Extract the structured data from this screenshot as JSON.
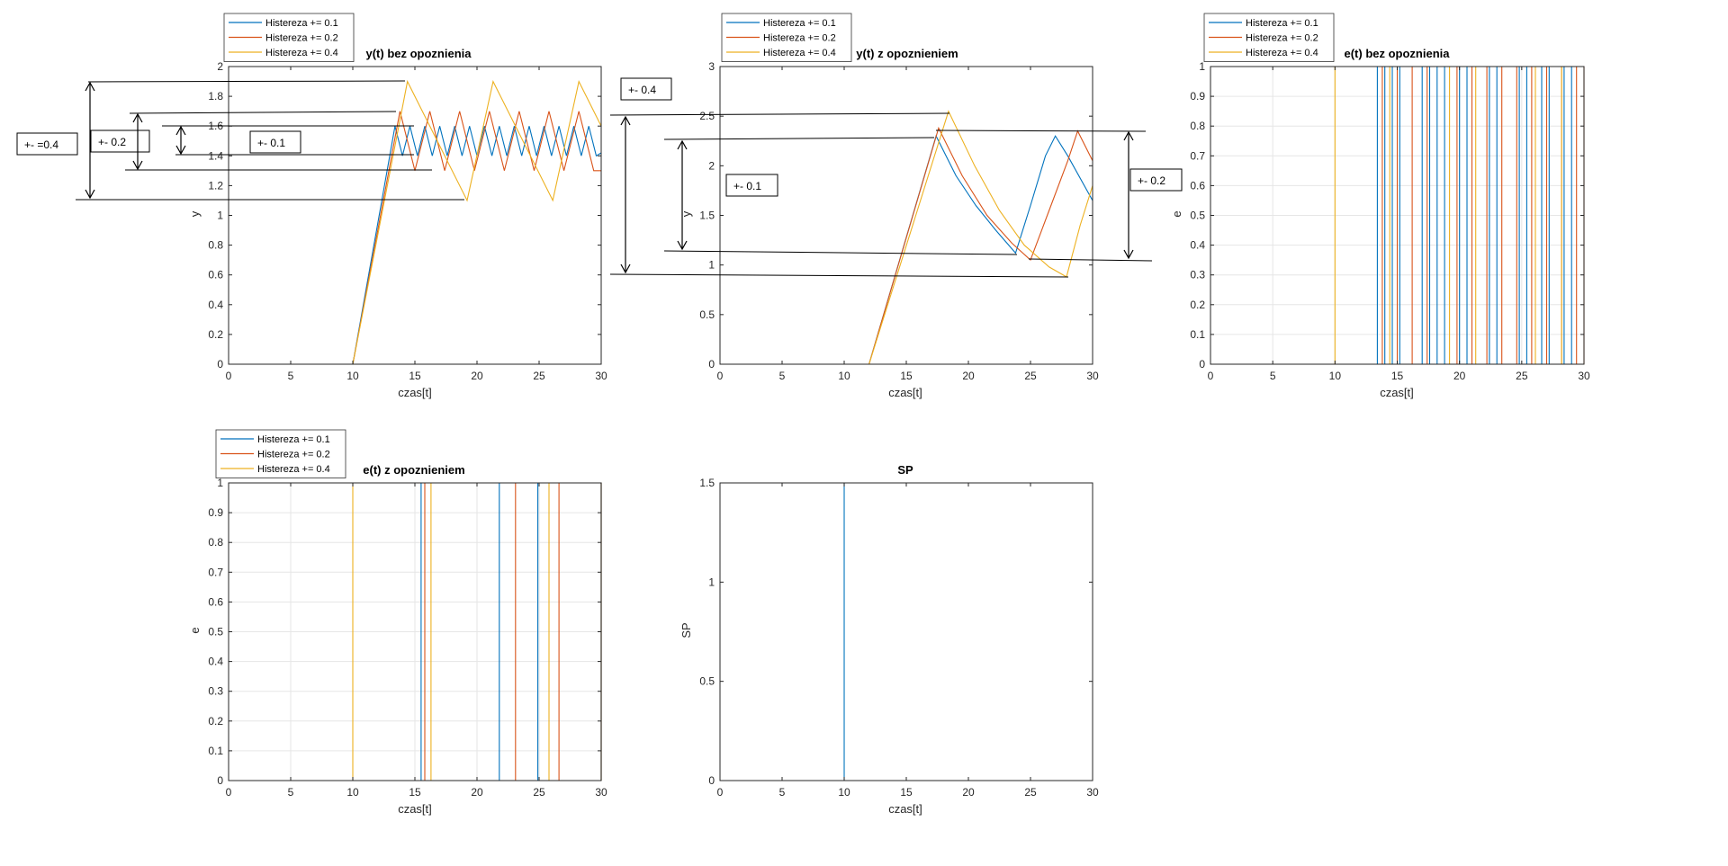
{
  "colors": {
    "series": [
      "#0072BD",
      "#D95319",
      "#EDB120"
    ],
    "grid": "#E6E6E6",
    "axis": "#262626",
    "annotation": "#000000"
  },
  "chart_data": [
    {
      "id": "p1",
      "type": "line",
      "title": "y(t) bez opoznienia",
      "xlabel": "czas[t]",
      "ylabel": "y",
      "xlim": [
        0,
        30
      ],
      "ylim": [
        0,
        2
      ],
      "xticks": [
        "0",
        "5",
        "10",
        "15",
        "20",
        "25",
        "30"
      ],
      "yticks": [
        "0",
        "0.2",
        "0.4",
        "0.6",
        "0.8",
        "1",
        "1.2",
        "1.4",
        "1.6",
        "1.8",
        "2"
      ],
      "grid": false,
      "legend": [
        "Histereza += 0.1",
        "Histereza += 0.2",
        "Histereza += 0.4"
      ],
      "series": [
        {
          "name": "Histereza += 0.1",
          "x": [
            0,
            10,
            13.4,
            14.0,
            14.6,
            15.2,
            15.8,
            16.4,
            17.0,
            17.6,
            18.2,
            18.8,
            19.4,
            20.0,
            20.6,
            21.2,
            21.8,
            22.4,
            23.0,
            23.6,
            24.2,
            24.8,
            25.4,
            26.0,
            26.6,
            27.2,
            27.8,
            28.4,
            29.0,
            29.6,
            30
          ],
          "y": [
            0,
            0,
            1.6,
            1.4,
            1.6,
            1.4,
            1.6,
            1.4,
            1.6,
            1.4,
            1.6,
            1.4,
            1.6,
            1.4,
            1.6,
            1.4,
            1.6,
            1.4,
            1.6,
            1.4,
            1.6,
            1.4,
            1.6,
            1.4,
            1.6,
            1.4,
            1.6,
            1.4,
            1.6,
            1.4,
            1.42
          ]
        },
        {
          "name": "Histereza += 0.2",
          "x": [
            0,
            10,
            13.8,
            15.0,
            16.2,
            17.4,
            18.6,
            19.8,
            21.0,
            22.2,
            23.4,
            24.6,
            25.8,
            27.0,
            28.2,
            29.4,
            30
          ],
          "y": [
            0,
            0,
            1.7,
            1.3,
            1.7,
            1.3,
            1.7,
            1.3,
            1.7,
            1.3,
            1.7,
            1.3,
            1.7,
            1.3,
            1.7,
            1.3,
            1.3
          ]
        },
        {
          "name": "Histereza += 0.4",
          "x": [
            0,
            10,
            14.4,
            19.2,
            21.3,
            26.1,
            28.2,
            30
          ],
          "y": [
            0,
            0,
            1.9,
            1.1,
            1.9,
            1.1,
            1.9,
            1.6
          ]
        }
      ],
      "annotations": [
        "+- =0.4",
        "+- 0.2",
        "+- 0.1"
      ]
    },
    {
      "id": "p2",
      "type": "line",
      "title": "y(t) z opoznieniem",
      "xlabel": "czas[t]",
      "ylabel": "y",
      "xlim": [
        0,
        30
      ],
      "ylim": [
        0,
        3
      ],
      "xticks": [
        "0",
        "5",
        "10",
        "15",
        "20",
        "25",
        "30"
      ],
      "yticks": [
        "0",
        "0.5",
        "1",
        "1.5",
        "2",
        "2.5",
        "3"
      ],
      "grid": false,
      "legend": [
        "Histereza += 0.1",
        "Histereza += 0.2",
        "Histereza += 0.4"
      ],
      "series": [
        {
          "name": "Histereza += 0.1",
          "x": [
            0,
            12,
            17.4,
            19.0,
            20.6,
            22.2,
            23.8,
            25.0,
            26.2,
            27.0,
            28.0,
            30
          ],
          "y": [
            0,
            0,
            2.3,
            1.9,
            1.6,
            1.35,
            1.12,
            1.6,
            2.1,
            2.3,
            2.1,
            1.65
          ]
        },
        {
          "name": "Histereza += 0.2",
          "x": [
            0,
            12,
            17.6,
            19.5,
            21.5,
            23.5,
            25.0,
            26.5,
            28.0,
            28.8,
            30
          ],
          "y": [
            0,
            0,
            2.38,
            1.9,
            1.5,
            1.22,
            1.05,
            1.55,
            2.05,
            2.35,
            2.05
          ]
        },
        {
          "name": "Histereza += 0.4",
          "x": [
            0,
            12,
            18.4,
            20.5,
            22.5,
            24.5,
            26.5,
            27.9,
            29.0,
            30
          ],
          "y": [
            0,
            0,
            2.55,
            2.0,
            1.55,
            1.2,
            0.98,
            0.88,
            1.4,
            1.8
          ]
        }
      ],
      "annotations": [
        "+- 0.4",
        "+- 0.1",
        "+- 0.2"
      ]
    },
    {
      "id": "p3",
      "type": "line",
      "title": "e(t) bez opoznienia",
      "xlabel": "czas[t]",
      "ylabel": "e",
      "xlim": [
        0,
        30
      ],
      "ylim": [
        0,
        1
      ],
      "xticks": [
        "0",
        "5",
        "10",
        "15",
        "20",
        "25",
        "30"
      ],
      "yticks": [
        "0",
        "0.1",
        "0.2",
        "0.3",
        "0.4",
        "0.5",
        "0.6",
        "0.7",
        "0.8",
        "0.9",
        "1"
      ],
      "grid": true,
      "legend": [
        "Histereza += 0.1",
        "Histereza += 0.2",
        "Histereza += 0.4"
      ],
      "series": [
        {
          "name": "Histereza += 0.1",
          "switch_times": [
            13.4,
            14.0,
            14.6,
            15.2,
            17.0,
            17.6,
            18.2,
            18.8,
            20.0,
            20.6,
            22.4,
            23.0,
            24.8,
            25.4,
            26.6,
            27.2,
            28.4,
            29.0
          ]
        },
        {
          "name": "Histereza += 0.2",
          "switch_times": [
            13.8,
            15.0,
            16.2,
            17.4,
            19.8,
            21.0,
            22.2,
            23.4,
            24.6,
            25.8,
            27.0,
            28.2,
            29.4,
            30
          ]
        },
        {
          "name": "Histereza += 0.4",
          "switch_times": [
            10,
            14.4,
            19.2,
            21.3,
            26.1,
            28.2
          ]
        }
      ]
    },
    {
      "id": "p4",
      "type": "line",
      "title": "e(t) z opoznieniem",
      "xlabel": "czas[t]",
      "ylabel": "e",
      "xlim": [
        0,
        30
      ],
      "ylim": [
        0,
        1
      ],
      "xticks": [
        "0",
        "5",
        "10",
        "15",
        "20",
        "25",
        "30"
      ],
      "yticks": [
        "0",
        "0.1",
        "0.2",
        "0.3",
        "0.4",
        "0.5",
        "0.6",
        "0.7",
        "0.8",
        "0.9",
        "1"
      ],
      "grid": true,
      "legend": [
        "Histereza += 0.1",
        "Histereza += 0.2",
        "Histereza += 0.4"
      ],
      "series": [
        {
          "name": "Histereza += 0.1",
          "switch_times": [
            15.5,
            21.8,
            24.9
          ]
        },
        {
          "name": "Histereza += 0.2",
          "switch_times": [
            15.8,
            23.1,
            26.6
          ]
        },
        {
          "name": "Histereza += 0.4",
          "switch_times": [
            10,
            16.3,
            25.8
          ]
        }
      ]
    },
    {
      "id": "p5",
      "type": "line",
      "title": "SP",
      "xlabel": "czas[t]",
      "ylabel": "SP",
      "xlim": [
        0,
        30
      ],
      "ylim": [
        0,
        1.5
      ],
      "xticks": [
        "0",
        "5",
        "10",
        "15",
        "20",
        "25",
        "30"
      ],
      "yticks": [
        "0",
        "0.5",
        "1",
        "1.5"
      ],
      "grid": false,
      "legend": [],
      "series": [
        {
          "x": [
            0,
            10,
            10,
            30
          ],
          "y": [
            0,
            0,
            1.5,
            1.5
          ]
        }
      ]
    }
  ]
}
